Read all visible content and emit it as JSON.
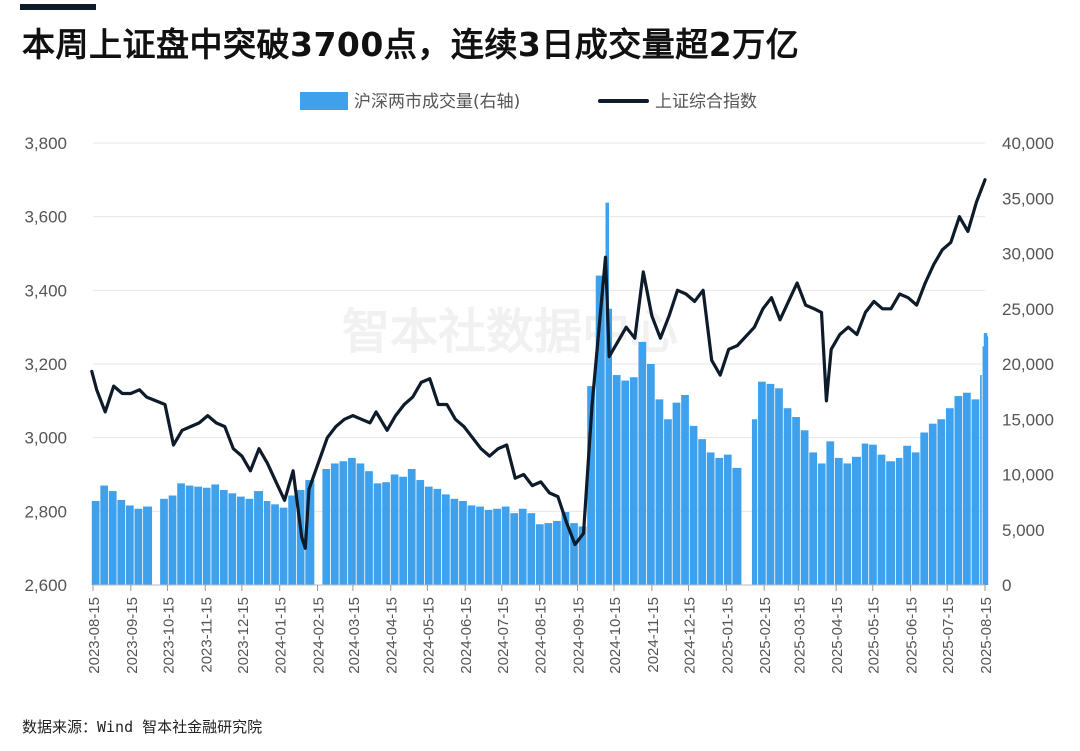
{
  "header": {
    "title": "本周上证盘中突破3700点，连续3日成交量超2万亿",
    "source": "数据来源：Wind 智本社金融研究院",
    "watermark": "智本社数据中心"
  },
  "chart_data": {
    "type": "bar+line",
    "legend": {
      "placement": "top-center",
      "items": [
        "沪深两市成交量(右轴)",
        "上证综合指数"
      ]
    },
    "colors": {
      "bars": "#3fa1ec",
      "line": "#0d1b2a"
    },
    "y_left": {
      "ylim": [
        2600,
        3800
      ],
      "ticks": [
        "2,600",
        "2,800",
        "3,000",
        "3,200",
        "3,400",
        "3,600",
        "3,800"
      ]
    },
    "y_right": {
      "ylim": [
        0,
        40000
      ],
      "ticks": [
        "0",
        "5,000",
        "10,000",
        "15,000",
        "20,000",
        "25,000",
        "30,000",
        "35,000",
        "40,000"
      ]
    },
    "x_ticks": [
      "2023-08-15",
      "2023-09-15",
      "2023-10-15",
      "2023-11-15",
      "2023-12-15",
      "2024-01-15",
      "2024-02-15",
      "2024-03-15",
      "2024-04-15",
      "2024-05-15",
      "2024-06-15",
      "2024-07-15",
      "2024-08-15",
      "2024-09-15",
      "2024-10-15",
      "2024-11-15",
      "2024-12-15",
      "2025-01-15",
      "2025-02-15",
      "2025-03-15",
      "2025-04-15",
      "2025-05-15",
      "2025-06-15",
      "2025-07-15",
      "2025-08-15"
    ],
    "grid": true,
    "series": [
      {
        "name": "上证综合指数",
        "axis": "left",
        "type": "line",
        "points": [
          [
            "2023-08-14",
            3180
          ],
          [
            "2023-08-18",
            3130
          ],
          [
            "2023-08-25",
            3070
          ],
          [
            "2023-09-01",
            3140
          ],
          [
            "2023-09-08",
            3120
          ],
          [
            "2023-09-15",
            3120
          ],
          [
            "2023-09-22",
            3130
          ],
          [
            "2023-09-28",
            3110
          ],
          [
            "2023-10-13",
            3090
          ],
          [
            "2023-10-20",
            2980
          ],
          [
            "2023-10-27",
            3020
          ],
          [
            "2023-11-03",
            3030
          ],
          [
            "2023-11-10",
            3040
          ],
          [
            "2023-11-17",
            3060
          ],
          [
            "2023-11-24",
            3040
          ],
          [
            "2023-12-01",
            3030
          ],
          [
            "2023-12-08",
            2970
          ],
          [
            "2023-12-15",
            2950
          ],
          [
            "2023-12-22",
            2910
          ],
          [
            "2023-12-29",
            2970
          ],
          [
            "2024-01-05",
            2930
          ],
          [
            "2024-01-12",
            2880
          ],
          [
            "2024-01-19",
            2830
          ],
          [
            "2024-01-26",
            2910
          ],
          [
            "2024-02-02",
            2730
          ],
          [
            "2024-02-05",
            2700
          ],
          [
            "2024-02-08",
            2860
          ],
          [
            "2024-02-23",
            3000
          ],
          [
            "2024-03-01",
            3030
          ],
          [
            "2024-03-08",
            3050
          ],
          [
            "2024-03-15",
            3060
          ],
          [
            "2024-03-22",
            3050
          ],
          [
            "2024-03-29",
            3040
          ],
          [
            "2024-04-03",
            3070
          ],
          [
            "2024-04-12",
            3020
          ],
          [
            "2024-04-19",
            3060
          ],
          [
            "2024-04-26",
            3090
          ],
          [
            "2024-05-03",
            3110
          ],
          [
            "2024-05-10",
            3150
          ],
          [
            "2024-05-17",
            3160
          ],
          [
            "2024-05-24",
            3090
          ],
          [
            "2024-05-31",
            3090
          ],
          [
            "2024-06-07",
            3050
          ],
          [
            "2024-06-14",
            3030
          ],
          [
            "2024-06-21",
            3000
          ],
          [
            "2024-06-28",
            2970
          ],
          [
            "2024-07-05",
            2950
          ],
          [
            "2024-07-12",
            2970
          ],
          [
            "2024-07-19",
            2980
          ],
          [
            "2024-07-26",
            2890
          ],
          [
            "2024-08-02",
            2900
          ],
          [
            "2024-08-09",
            2870
          ],
          [
            "2024-08-16",
            2880
          ],
          [
            "2024-08-23",
            2850
          ],
          [
            "2024-08-30",
            2840
          ],
          [
            "2024-09-06",
            2770
          ],
          [
            "2024-09-13",
            2710
          ],
          [
            "2024-09-20",
            2740
          ],
          [
            "2024-09-27",
            3090
          ],
          [
            "2024-10-08",
            3490
          ],
          [
            "2024-10-11",
            3220
          ],
          [
            "2024-10-18",
            3260
          ],
          [
            "2024-10-25",
            3300
          ],
          [
            "2024-11-01",
            3270
          ],
          [
            "2024-11-08",
            3450
          ],
          [
            "2024-11-15",
            3330
          ],
          [
            "2024-11-22",
            3270
          ],
          [
            "2024-11-29",
            3330
          ],
          [
            "2024-12-06",
            3400
          ],
          [
            "2024-12-13",
            3390
          ],
          [
            "2024-12-20",
            3370
          ],
          [
            "2024-12-27",
            3400
          ],
          [
            "2025-01-03",
            3210
          ],
          [
            "2025-01-10",
            3170
          ],
          [
            "2025-01-17",
            3240
          ],
          [
            "2025-01-24",
            3250
          ],
          [
            "2025-02-07",
            3300
          ],
          [
            "2025-02-14",
            3350
          ],
          [
            "2025-02-21",
            3380
          ],
          [
            "2025-02-28",
            3320
          ],
          [
            "2025-03-07",
            3370
          ],
          [
            "2025-03-14",
            3420
          ],
          [
            "2025-03-21",
            3360
          ],
          [
            "2025-03-28",
            3350
          ],
          [
            "2025-04-03",
            3340
          ],
          [
            "2025-04-07",
            3100
          ],
          [
            "2025-04-11",
            3240
          ],
          [
            "2025-04-18",
            3280
          ],
          [
            "2025-04-25",
            3300
          ],
          [
            "2025-05-02",
            3280
          ],
          [
            "2025-05-09",
            3340
          ],
          [
            "2025-05-16",
            3370
          ],
          [
            "2025-05-23",
            3350
          ],
          [
            "2025-05-30",
            3350
          ],
          [
            "2025-06-06",
            3390
          ],
          [
            "2025-06-13",
            3380
          ],
          [
            "2025-06-20",
            3360
          ],
          [
            "2025-06-27",
            3420
          ],
          [
            "2025-07-04",
            3470
          ],
          [
            "2025-07-11",
            3510
          ],
          [
            "2025-07-18",
            3530
          ],
          [
            "2025-07-25",
            3600
          ],
          [
            "2025-08-01",
            3560
          ],
          [
            "2025-08-08",
            3640
          ],
          [
            "2025-08-15",
            3700
          ]
        ]
      },
      {
        "name": "沪深两市成交量(右轴)",
        "axis": "right",
        "type": "bar",
        "weekly_avg": [
          [
            "2023-08-14",
            7600
          ],
          [
            "2023-08-21",
            9000
          ],
          [
            "2023-08-28",
            8500
          ],
          [
            "2023-09-04",
            7700
          ],
          [
            "2023-09-11",
            7200
          ],
          [
            "2023-09-18",
            6900
          ],
          [
            "2023-09-25",
            7100
          ],
          [
            "2023-10-09",
            7800
          ],
          [
            "2023-10-16",
            8100
          ],
          [
            "2023-10-23",
            9200
          ],
          [
            "2023-10-30",
            9000
          ],
          [
            "2023-11-06",
            8900
          ],
          [
            "2023-11-13",
            8800
          ],
          [
            "2023-11-20",
            9100
          ],
          [
            "2023-11-27",
            8600
          ],
          [
            "2023-12-04",
            8300
          ],
          [
            "2023-12-11",
            8000
          ],
          [
            "2023-12-18",
            7800
          ],
          [
            "2023-12-25",
            8500
          ],
          [
            "2024-01-02",
            7600
          ],
          [
            "2024-01-08",
            7300
          ],
          [
            "2024-01-15",
            7000
          ],
          [
            "2024-01-22",
            8100
          ],
          [
            "2024-01-29",
            8600
          ],
          [
            "2024-02-05",
            9500
          ],
          [
            "2024-02-19",
            10500
          ],
          [
            "2024-02-26",
            11000
          ],
          [
            "2024-03-04",
            11200
          ],
          [
            "2024-03-11",
            11500
          ],
          [
            "2024-03-18",
            11000
          ],
          [
            "2024-03-25",
            10300
          ],
          [
            "2024-04-01",
            9200
          ],
          [
            "2024-04-08",
            9300
          ],
          [
            "2024-04-15",
            10000
          ],
          [
            "2024-04-22",
            9800
          ],
          [
            "2024-04-29",
            10500
          ],
          [
            "2024-05-06",
            9500
          ],
          [
            "2024-05-13",
            8900
          ],
          [
            "2024-05-20",
            8700
          ],
          [
            "2024-05-27",
            8200
          ],
          [
            "2024-06-03",
            7800
          ],
          [
            "2024-06-10",
            7600
          ],
          [
            "2024-06-17",
            7200
          ],
          [
            "2024-06-24",
            7100
          ],
          [
            "2024-07-01",
            6800
          ],
          [
            "2024-07-08",
            6900
          ],
          [
            "2024-07-15",
            7100
          ],
          [
            "2024-07-22",
            6500
          ],
          [
            "2024-07-29",
            6900
          ],
          [
            "2024-08-05",
            6500
          ],
          [
            "2024-08-12",
            5500
          ],
          [
            "2024-08-19",
            5600
          ],
          [
            "2024-08-26",
            5800
          ],
          [
            "2024-09-02",
            6600
          ],
          [
            "2024-09-09",
            5600
          ],
          [
            "2024-09-16",
            5300
          ],
          [
            "2024-09-23",
            18000
          ],
          [
            "2024-09-30",
            28000
          ],
          [
            "2024-10-08",
            25000
          ],
          [
            "2024-10-14",
            19000
          ],
          [
            "2024-10-21",
            18500
          ],
          [
            "2024-10-28",
            18800
          ],
          [
            "2024-11-04",
            22000
          ],
          [
            "2024-11-11",
            20000
          ],
          [
            "2024-11-18",
            16800
          ],
          [
            "2024-11-25",
            15000
          ],
          [
            "2024-12-02",
            16500
          ],
          [
            "2024-12-09",
            17200
          ],
          [
            "2024-12-16",
            14400
          ],
          [
            "2024-12-23",
            13200
          ],
          [
            "2024-12-30",
            12000
          ],
          [
            "2025-01-06",
            11500
          ],
          [
            "2025-01-13",
            11800
          ],
          [
            "2025-01-20",
            10600
          ],
          [
            "2025-02-05",
            15000
          ],
          [
            "2025-02-10",
            18400
          ],
          [
            "2025-02-17",
            18200
          ],
          [
            "2025-02-24",
            17800
          ],
          [
            "2025-03-03",
            16000
          ],
          [
            "2025-03-10",
            15200
          ],
          [
            "2025-03-17",
            14000
          ],
          [
            "2025-03-24",
            12000
          ],
          [
            "2025-03-31",
            11000
          ],
          [
            "2025-04-07",
            13000
          ],
          [
            "2025-04-14",
            11500
          ],
          [
            "2025-04-21",
            11000
          ],
          [
            "2025-04-28",
            11600
          ],
          [
            "2025-05-06",
            12800
          ],
          [
            "2025-05-12",
            12700
          ],
          [
            "2025-05-19",
            11800
          ],
          [
            "2025-05-26",
            11200
          ],
          [
            "2025-06-03",
            11500
          ],
          [
            "2025-06-09",
            12600
          ],
          [
            "2025-06-16",
            12000
          ],
          [
            "2025-06-23",
            13800
          ],
          [
            "2025-06-30",
            14600
          ],
          [
            "2025-07-07",
            15000
          ],
          [
            "2025-07-14",
            16000
          ],
          [
            "2025-07-21",
            17100
          ],
          [
            "2025-07-28",
            17400
          ],
          [
            "2025-08-04",
            16800
          ],
          [
            "2025-08-11",
            19000
          ],
          [
            "2025-08-13",
            21600
          ],
          [
            "2025-08-15",
            22500
          ]
        ],
        "peaks": [
          [
            "2024-10-08",
            34600
          ],
          [
            "2025-08-14",
            22800
          ]
        ]
      }
    ]
  }
}
